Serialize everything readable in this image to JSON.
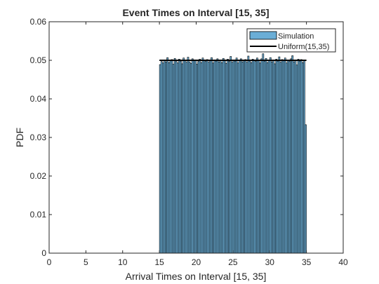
{
  "chart_data": {
    "type": "bar",
    "title": "Event Times on Interval [15, 35]",
    "xlabel": "Arrival Times on Interval [15, 35]",
    "ylabel": "PDF",
    "xlim": [
      0,
      40
    ],
    "ylim": [
      0,
      0.06
    ],
    "xticks": [
      "0",
      "5",
      "10",
      "15",
      "20",
      "25",
      "30",
      "35",
      "40"
    ],
    "yticks": [
      "0",
      "0.01",
      "0.02",
      "0.03",
      "0.04",
      "0.05",
      "0.06"
    ],
    "grid": false,
    "legend_position": "top-right",
    "bin_width": 0.2,
    "series": [
      {
        "name": "Simulation",
        "type": "histogram",
        "color": "#6baed6",
        "edge_color": "#000000",
        "bin_start": 15,
        "values": [
          0.0489,
          0.0497,
          0.0493,
          0.0501,
          0.0496,
          0.0507,
          0.0494,
          0.0499,
          0.0502,
          0.049,
          0.0505,
          0.0497,
          0.0493,
          0.0503,
          0.0498,
          0.0491,
          0.0506,
          0.05,
          0.0495,
          0.0508,
          0.0496,
          0.0492,
          0.0504,
          0.0499,
          0.0501,
          0.049,
          0.0497,
          0.0503,
          0.0494,
          0.0506,
          0.05,
          0.0497,
          0.0502,
          0.0495,
          0.0499,
          0.0507,
          0.0493,
          0.0501,
          0.0498,
          0.0504,
          0.0496,
          0.05,
          0.0494,
          0.0505,
          0.0499,
          0.0492,
          0.0503,
          0.0497,
          0.051,
          0.0495,
          0.0501,
          0.0498,
          0.0506,
          0.0493,
          0.05,
          0.0504,
          0.0496,
          0.0499,
          0.0502,
          0.0495,
          0.0511,
          0.0498,
          0.0494,
          0.0503,
          0.05,
          0.0497,
          0.0506,
          0.0501,
          0.0493,
          0.0504,
          0.0517,
          0.0498,
          0.0505,
          0.0494,
          0.0501,
          0.0507,
          0.0496,
          0.05,
          0.0491,
          0.0503,
          0.0498,
          0.0509,
          0.0495,
          0.0502,
          0.0499,
          0.0506,
          0.0493,
          0.0501,
          0.0497,
          0.0504,
          0.0512,
          0.0496,
          0.05,
          0.0488,
          0.0503,
          0.0498,
          0.0502,
          0.0494,
          0.0499,
          0.0333
        ]
      },
      {
        "name": "Uniform(15,35)",
        "type": "line",
        "color": "#000000",
        "x": [
          15,
          35
        ],
        "y": [
          0.05,
          0.05
        ]
      }
    ]
  }
}
